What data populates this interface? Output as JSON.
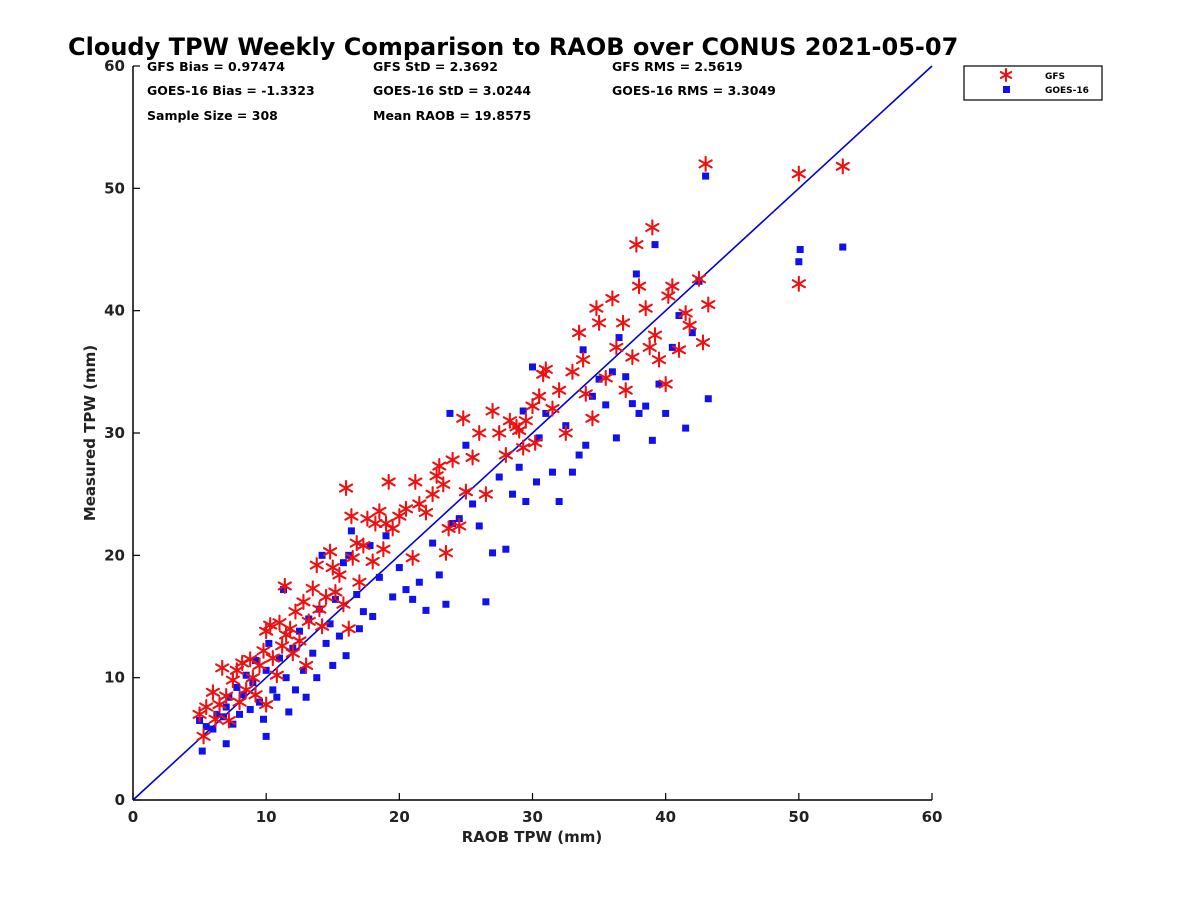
{
  "chart_data": {
    "type": "scatter",
    "title": "Cloudy TPW Weekly Comparison to RAOB over CONUS 2021-05-07",
    "xlabel": "RAOB TPW (mm)",
    "ylabel": "Measured TPW (mm)",
    "xlim": [
      0,
      60
    ],
    "ylim": [
      0,
      60
    ],
    "xticks": [
      "0",
      "10",
      "20",
      "30",
      "40",
      "50",
      "60"
    ],
    "yticks": [
      "0",
      "10",
      "20",
      "30",
      "40",
      "50",
      "60"
    ],
    "grid": false,
    "legend_placement": "outside-top-right",
    "stats": [
      "GFS Bias = 0.97474",
      "GFS StD = 2.3692",
      "GFS RMS = 2.5619",
      "GOES-16 Bias = -1.3323",
      "GOES-16 StD = 3.0244",
      "GOES-16 RMS = 3.3049",
      "Sample Size = 308",
      "Mean RAOB = 19.8575"
    ],
    "reference_line": {
      "type": "one-to-one",
      "color": "#0000dd"
    },
    "series": [
      {
        "name": "GFS",
        "marker": "asterisk",
        "color": "#ee1111",
        "points": [
          [
            5.0,
            7.0
          ],
          [
            5.3,
            5.2
          ],
          [
            5.5,
            7.6
          ],
          [
            6.0,
            8.8
          ],
          [
            6.2,
            6.6
          ],
          [
            6.5,
            7.8
          ],
          [
            6.7,
            10.8
          ],
          [
            7.0,
            8.5
          ],
          [
            7.2,
            6.5
          ],
          [
            7.5,
            9.8
          ],
          [
            7.8,
            10.6
          ],
          [
            8.0,
            8.0
          ],
          [
            8.2,
            11.2
          ],
          [
            8.5,
            9.0
          ],
          [
            8.8,
            11.5
          ],
          [
            9.0,
            10.0
          ],
          [
            9.2,
            8.6
          ],
          [
            9.5,
            11.0
          ],
          [
            9.8,
            12.2
          ],
          [
            10.0,
            7.8
          ],
          [
            10.0,
            13.8
          ],
          [
            10.3,
            14.3
          ],
          [
            10.5,
            11.6
          ],
          [
            10.8,
            10.2
          ],
          [
            11.0,
            14.5
          ],
          [
            11.2,
            12.6
          ],
          [
            11.4,
            17.5
          ],
          [
            11.5,
            13.5
          ],
          [
            11.8,
            14.0
          ],
          [
            12.0,
            12.0
          ],
          [
            12.2,
            15.4
          ],
          [
            12.5,
            13.0
          ],
          [
            12.8,
            16.2
          ],
          [
            13.0,
            11.0
          ],
          [
            13.2,
            14.6
          ],
          [
            13.5,
            17.3
          ],
          [
            13.8,
            19.2
          ],
          [
            14.0,
            15.6
          ],
          [
            14.2,
            14.2
          ],
          [
            14.5,
            16.6
          ],
          [
            14.8,
            20.3
          ],
          [
            15.0,
            19.0
          ],
          [
            15.2,
            17.0
          ],
          [
            15.5,
            18.4
          ],
          [
            15.8,
            16.0
          ],
          [
            16.0,
            25.5
          ],
          [
            16.2,
            14.0
          ],
          [
            16.4,
            23.2
          ],
          [
            16.5,
            19.8
          ],
          [
            16.8,
            21.0
          ],
          [
            17.0,
            17.8
          ],
          [
            17.3,
            20.8
          ],
          [
            17.6,
            23.0
          ],
          [
            18.0,
            19.5
          ],
          [
            18.2,
            22.6
          ],
          [
            18.5,
            23.6
          ],
          [
            18.8,
            20.5
          ],
          [
            19.0,
            22.6
          ],
          [
            19.2,
            26.0
          ],
          [
            19.5,
            22.2
          ],
          [
            20.0,
            23.2
          ],
          [
            20.5,
            23.8
          ],
          [
            21.0,
            19.8
          ],
          [
            21.2,
            26.0
          ],
          [
            21.5,
            24.2
          ],
          [
            22.0,
            23.5
          ],
          [
            22.5,
            25.0
          ],
          [
            22.8,
            26.5
          ],
          [
            23.0,
            27.3
          ],
          [
            23.3,
            25.8
          ],
          [
            23.5,
            20.2
          ],
          [
            23.7,
            22.2
          ],
          [
            24.0,
            27.8
          ],
          [
            24.5,
            22.4
          ],
          [
            24.8,
            31.2
          ],
          [
            25.0,
            25.2
          ],
          [
            25.5,
            28.0
          ],
          [
            26.0,
            30.0
          ],
          [
            26.5,
            25.0
          ],
          [
            27.0,
            31.8
          ],
          [
            27.5,
            30.0
          ],
          [
            28.0,
            28.2
          ],
          [
            28.3,
            31.0
          ],
          [
            28.8,
            30.5
          ],
          [
            29.0,
            30.2
          ],
          [
            29.3,
            28.8
          ],
          [
            29.5,
            31.0
          ],
          [
            30.0,
            32.2
          ],
          [
            30.2,
            29.2
          ],
          [
            30.5,
            33.0
          ],
          [
            30.8,
            34.8
          ],
          [
            31.0,
            35.2
          ],
          [
            31.5,
            32.0
          ],
          [
            32.0,
            33.5
          ],
          [
            32.5,
            30.0
          ],
          [
            33.0,
            35.0
          ],
          [
            33.5,
            38.2
          ],
          [
            33.8,
            36.0
          ],
          [
            34.0,
            33.2
          ],
          [
            34.5,
            31.2
          ],
          [
            34.8,
            40.2
          ],
          [
            35.0,
            39.0
          ],
          [
            35.5,
            34.5
          ],
          [
            36.0,
            41.0
          ],
          [
            36.3,
            37.0
          ],
          [
            36.8,
            39.0
          ],
          [
            37.0,
            33.5
          ],
          [
            37.5,
            36.2
          ],
          [
            37.8,
            45.4
          ],
          [
            38.0,
            42.0
          ],
          [
            38.5,
            40.2
          ],
          [
            38.8,
            37.0
          ],
          [
            39.0,
            46.8
          ],
          [
            39.2,
            38.0
          ],
          [
            39.5,
            36.0
          ],
          [
            40.0,
            34.0
          ],
          [
            40.2,
            41.2
          ],
          [
            40.5,
            42.0
          ],
          [
            41.0,
            36.8
          ],
          [
            41.5,
            39.8
          ],
          [
            41.8,
            38.8
          ],
          [
            42.5,
            42.6
          ],
          [
            42.8,
            37.4
          ],
          [
            43.0,
            52.0
          ],
          [
            43.2,
            40.5
          ],
          [
            50.0,
            51.2
          ],
          [
            50.0,
            42.2
          ],
          [
            53.3,
            51.8
          ]
        ]
      },
      {
        "name": "GOES-16",
        "marker": "square",
        "color": "#1111ee",
        "points": [
          [
            5.0,
            6.5
          ],
          [
            5.2,
            4.0
          ],
          [
            5.5,
            6.0
          ],
          [
            6.0,
            5.8
          ],
          [
            6.3,
            7.0
          ],
          [
            6.8,
            6.8
          ],
          [
            7.0,
            4.6
          ],
          [
            7.0,
            7.6
          ],
          [
            7.2,
            8.4
          ],
          [
            7.5,
            6.2
          ],
          [
            7.8,
            9.2
          ],
          [
            8.0,
            7.0
          ],
          [
            8.2,
            8.6
          ],
          [
            8.5,
            10.2
          ],
          [
            8.8,
            7.4
          ],
          [
            9.0,
            9.6
          ],
          [
            9.2,
            11.4
          ],
          [
            9.5,
            8.0
          ],
          [
            9.8,
            6.6
          ],
          [
            10.0,
            5.2
          ],
          [
            10.0,
            10.6
          ],
          [
            10.2,
            12.8
          ],
          [
            10.5,
            9.0
          ],
          [
            10.8,
            8.4
          ],
          [
            11.0,
            11.6
          ],
          [
            11.3,
            17.2
          ],
          [
            11.5,
            10.0
          ],
          [
            11.7,
            7.2
          ],
          [
            12.0,
            12.4
          ],
          [
            12.2,
            9.0
          ],
          [
            12.5,
            13.8
          ],
          [
            12.8,
            10.6
          ],
          [
            13.0,
            8.4
          ],
          [
            13.2,
            14.8
          ],
          [
            13.5,
            12.0
          ],
          [
            13.8,
            10.0
          ],
          [
            14.0,
            15.6
          ],
          [
            14.2,
            20.0
          ],
          [
            14.5,
            12.8
          ],
          [
            14.8,
            14.4
          ],
          [
            15.0,
            11.0
          ],
          [
            15.2,
            16.4
          ],
          [
            15.5,
            13.4
          ],
          [
            15.8,
            19.4
          ],
          [
            16.0,
            11.8
          ],
          [
            16.2,
            20.0
          ],
          [
            16.4,
            22.0
          ],
          [
            16.8,
            16.8
          ],
          [
            17.0,
            14.0
          ],
          [
            17.3,
            15.4
          ],
          [
            17.8,
            20.8
          ],
          [
            18.0,
            15.0
          ],
          [
            18.5,
            18.2
          ],
          [
            19.0,
            21.6
          ],
          [
            19.5,
            16.6
          ],
          [
            20.0,
            19.0
          ],
          [
            20.5,
            17.2
          ],
          [
            21.0,
            16.4
          ],
          [
            21.5,
            17.8
          ],
          [
            22.0,
            15.5
          ],
          [
            22.5,
            21.0
          ],
          [
            23.0,
            18.4
          ],
          [
            23.5,
            16.0
          ],
          [
            23.8,
            31.6
          ],
          [
            24.0,
            22.6
          ],
          [
            24.5,
            23.0
          ],
          [
            25.0,
            29.0
          ],
          [
            25.5,
            24.2
          ],
          [
            26.0,
            22.4
          ],
          [
            26.5,
            16.2
          ],
          [
            27.0,
            20.2
          ],
          [
            27.5,
            26.4
          ],
          [
            28.0,
            20.5
          ],
          [
            28.5,
            25.0
          ],
          [
            29.0,
            27.2
          ],
          [
            29.3,
            31.8
          ],
          [
            29.5,
            24.4
          ],
          [
            30.0,
            35.4
          ],
          [
            30.3,
            26.0
          ],
          [
            30.5,
            29.6
          ],
          [
            31.0,
            31.6
          ],
          [
            31.5,
            26.8
          ],
          [
            32.0,
            24.4
          ],
          [
            32.5,
            30.6
          ],
          [
            33.0,
            26.8
          ],
          [
            33.5,
            28.2
          ],
          [
            33.8,
            36.8
          ],
          [
            34.0,
            29.0
          ],
          [
            34.5,
            33.0
          ],
          [
            35.0,
            34.4
          ],
          [
            35.5,
            32.3
          ],
          [
            36.0,
            35.0
          ],
          [
            36.3,
            29.6
          ],
          [
            36.5,
            37.8
          ],
          [
            37.0,
            34.6
          ],
          [
            37.5,
            32.4
          ],
          [
            37.8,
            43.0
          ],
          [
            38.0,
            31.6
          ],
          [
            38.5,
            32.2
          ],
          [
            39.0,
            29.4
          ],
          [
            39.2,
            45.4
          ],
          [
            39.5,
            34.0
          ],
          [
            40.0,
            31.6
          ],
          [
            40.5,
            37.0
          ],
          [
            41.0,
            39.6
          ],
          [
            41.5,
            30.4
          ],
          [
            42.0,
            38.2
          ],
          [
            42.5,
            42.4
          ],
          [
            43.0,
            51.0
          ],
          [
            43.2,
            32.8
          ],
          [
            50.0,
            44.0
          ],
          [
            50.1,
            45.0
          ],
          [
            53.3,
            45.2
          ]
        ]
      }
    ]
  }
}
